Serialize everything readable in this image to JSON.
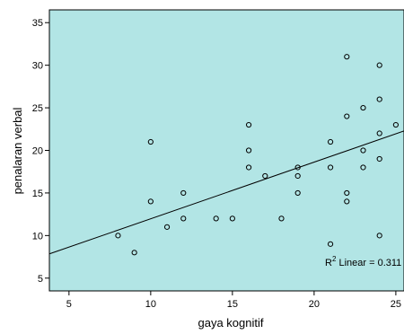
{
  "chart_data": {
    "type": "scatter",
    "xlabel": "gaya kognitif",
    "ylabel": "penalaran verbal",
    "xlim": [
      3.8,
      25.5
    ],
    "ylim": [
      3.5,
      36.5
    ],
    "x_ticks": [
      5,
      10,
      15,
      20,
      25
    ],
    "y_ticks": [
      5,
      10,
      15,
      20,
      25,
      30,
      35
    ],
    "grid": false,
    "legend": "none",
    "plot_background": "#b2e5e5",
    "marker": "open-circle",
    "points": [
      {
        "x": 8,
        "y": 10
      },
      {
        "x": 9,
        "y": 8
      },
      {
        "x": 10,
        "y": 21
      },
      {
        "x": 10,
        "y": 14
      },
      {
        "x": 11,
        "y": 11
      },
      {
        "x": 12,
        "y": 15
      },
      {
        "x": 12,
        "y": 12
      },
      {
        "x": 14,
        "y": 12
      },
      {
        "x": 15,
        "y": 12
      },
      {
        "x": 16,
        "y": 23
      },
      {
        "x": 16,
        "y": 20
      },
      {
        "x": 16,
        "y": 18
      },
      {
        "x": 17,
        "y": 17
      },
      {
        "x": 18,
        "y": 12
      },
      {
        "x": 19,
        "y": 18
      },
      {
        "x": 19,
        "y": 17
      },
      {
        "x": 19,
        "y": 15
      },
      {
        "x": 21,
        "y": 21
      },
      {
        "x": 21,
        "y": 18
      },
      {
        "x": 21,
        "y": 9
      },
      {
        "x": 22,
        "y": 31
      },
      {
        "x": 22,
        "y": 24
      },
      {
        "x": 22,
        "y": 15
      },
      {
        "x": 22,
        "y": 14
      },
      {
        "x": 23,
        "y": 25
      },
      {
        "x": 23,
        "y": 20
      },
      {
        "x": 23,
        "y": 18
      },
      {
        "x": 24,
        "y": 30
      },
      {
        "x": 24,
        "y": 26
      },
      {
        "x": 24,
        "y": 22
      },
      {
        "x": 24,
        "y": 19
      },
      {
        "x": 24,
        "y": 10
      },
      {
        "x": 25,
        "y": 23
      }
    ],
    "fit_line": {
      "type": "linear",
      "intercept": 5.32,
      "slope": 0.665
    },
    "annotation": {
      "prefix": "R",
      "superscript": "2",
      "text": " Linear = 0.311"
    }
  }
}
